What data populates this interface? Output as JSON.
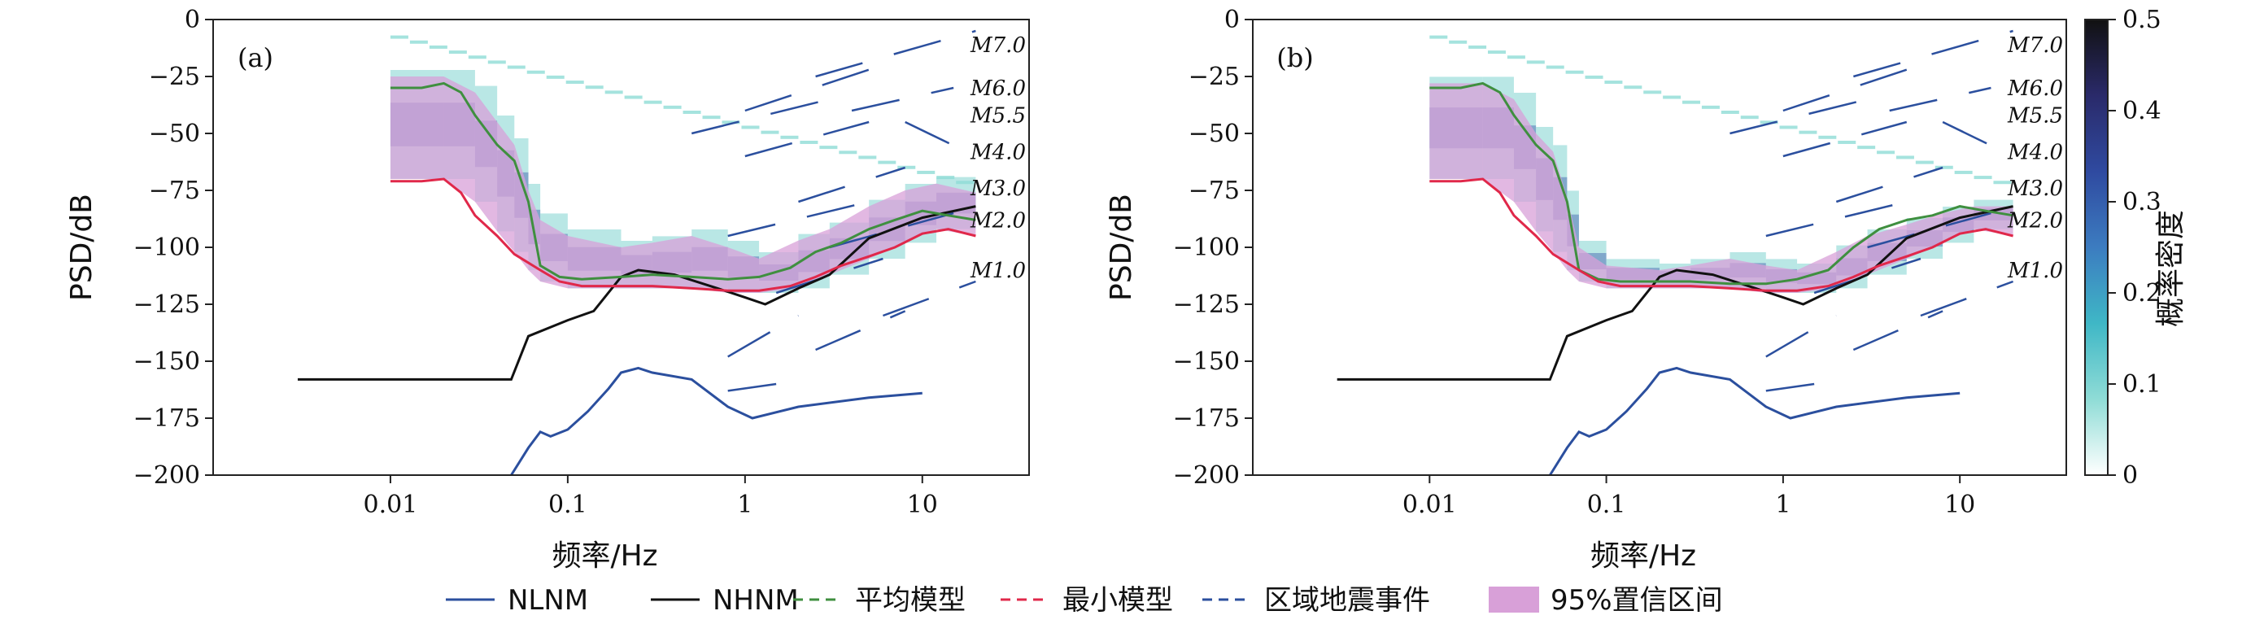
{
  "legend": {
    "items": [
      {
        "label": "NLNM",
        "color": "#2b4f9e",
        "style": "solid"
      },
      {
        "label": "NHNM",
        "color": "#111111",
        "style": "solid"
      },
      {
        "label": "平均模型",
        "color": "#3f8f3f",
        "style": "dashed"
      },
      {
        "label": "最小模型",
        "color": "#e0284a",
        "style": "dashed"
      },
      {
        "label": "区域地震事件",
        "color": "#2b4f9e",
        "style": "dashed"
      },
      {
        "label": "95%置信区间",
        "color": "#d8a0d8",
        "style": "patch"
      }
    ]
  },
  "colorbar": {
    "label": "概率密度",
    "ticks": [
      "0",
      "0.1",
      "0.2",
      "0.3",
      "0.4",
      "0.5"
    ],
    "range": [
      0,
      0.5
    ],
    "colors": [
      "#ffffff",
      "#8fdcd6",
      "#3fb7c6",
      "#3c7cc0",
      "#2f4aa0",
      "#2a2a6a",
      "#111111"
    ]
  },
  "chart_data": [
    {
      "type": "line",
      "panel_label": "(a)",
      "xlabel": "频率/Hz",
      "ylabel": "PSD/dB",
      "x_scale": "log",
      "xlim": [
        0.001,
        40
      ],
      "ylim": [
        -200,
        0
      ],
      "xticks": [
        "0.01",
        "0.1",
        "1",
        "10"
      ],
      "yticks": [
        "0",
        "−25",
        "−50",
        "−75",
        "−100",
        "−125",
        "−150",
        "−175",
        "−200"
      ],
      "magnitude_labels": [
        "M7.0",
        "M6.0",
        "M5.5",
        "M4.0",
        "M3.0",
        "M2.0",
        "M1.0"
      ],
      "series": [
        {
          "name": "NLNM",
          "x": [
            0.048,
            0.06,
            0.07,
            0.08,
            0.1,
            0.13,
            0.17,
            0.2,
            0.25,
            0.3,
            0.5,
            0.8,
            1.1,
            2,
            5,
            10
          ],
          "y": [
            -200,
            -188,
            -181,
            -183,
            -180,
            -172,
            -162,
            -155,
            -153,
            -155,
            -158,
            -170,
            -175,
            -170,
            -166,
            -164
          ]
        },
        {
          "name": "NHNM",
          "x": [
            0.003,
            0.048,
            0.06,
            0.1,
            0.14,
            0.2,
            0.25,
            0.4,
            0.7,
            1.0,
            1.3,
            2.0,
            3,
            5,
            10,
            20
          ],
          "y": [
            -158,
            -158,
            -139,
            -132,
            -128,
            -113,
            -110,
            -112,
            -118,
            -122,
            -125,
            -118,
            -112,
            -96,
            -87,
            -82
          ]
        },
        {
          "name": "平均模型",
          "x": [
            0.01,
            0.015,
            0.02,
            0.025,
            0.03,
            0.04,
            0.05,
            0.06,
            0.07,
            0.09,
            0.12,
            0.2,
            0.3,
            0.5,
            0.8,
            1.2,
            1.8,
            2.5,
            3.5,
            5,
            7,
            10,
            14,
            20
          ],
          "y": [
            -30,
            -30,
            -28,
            -32,
            -42,
            -55,
            -62,
            -80,
            -108,
            -113,
            -114,
            -113,
            -112,
            -113,
            -114,
            -113,
            -109,
            -102,
            -98,
            -92,
            -88,
            -84,
            -86,
            -88
          ]
        },
        {
          "name": "最小模型",
          "x": [
            0.01,
            0.015,
            0.02,
            0.025,
            0.03,
            0.04,
            0.05,
            0.07,
            0.09,
            0.12,
            0.2,
            0.3,
            0.5,
            0.8,
            1.2,
            1.8,
            2.5,
            3.5,
            5,
            7,
            10,
            14,
            20
          ],
          "y": [
            -71,
            -71,
            -70,
            -76,
            -86,
            -95,
            -103,
            -110,
            -115,
            -117,
            -117,
            -117,
            -118,
            -119,
            -119,
            -117,
            -113,
            -108,
            -104,
            -100,
            -94,
            -92,
            -95
          ]
        }
      ],
      "confidence_95": {
        "x": [
          0.01,
          0.02,
          0.03,
          0.04,
          0.05,
          0.06,
          0.07,
          0.1,
          0.2,
          0.3,
          0.5,
          0.8,
          1.2,
          2,
          3,
          5,
          8,
          12,
          20
        ],
        "upper": [
          -25,
          -25,
          -32,
          -45,
          -55,
          -75,
          -88,
          -95,
          -100,
          -98,
          -95,
          -100,
          -105,
          -97,
          -92,
          -82,
          -75,
          -72,
          -76
        ],
        "lower": [
          -70,
          -70,
          -80,
          -93,
          -102,
          -110,
          -115,
          -118,
          -118,
          -118,
          -118,
          -120,
          -120,
          -118,
          -112,
          -105,
          -98,
          -92,
          -95
        ]
      }
    },
    {
      "type": "line",
      "panel_label": "(b)",
      "xlabel": "频率/Hz",
      "ylabel": "PSD/dB",
      "x_scale": "log",
      "xlim": [
        0.001,
        40
      ],
      "ylim": [
        -200,
        0
      ],
      "xticks": [
        "0.01",
        "0.1",
        "1",
        "10"
      ],
      "yticks": [
        "0",
        "−25",
        "−50",
        "−75",
        "−100",
        "−125",
        "−150",
        "−175",
        "−200"
      ],
      "magnitude_labels": [
        "M7.0",
        "M6.0",
        "M5.5",
        "M4.0",
        "M3.0",
        "M2.0",
        "M1.0"
      ],
      "series": [
        {
          "name": "NLNM",
          "x": [
            0.048,
            0.06,
            0.07,
            0.08,
            0.1,
            0.13,
            0.17,
            0.2,
            0.25,
            0.3,
            0.5,
            0.8,
            1.1,
            2,
            5,
            10
          ],
          "y": [
            -200,
            -188,
            -181,
            -183,
            -180,
            -172,
            -162,
            -155,
            -153,
            -155,
            -158,
            -170,
            -175,
            -170,
            -166,
            -164
          ]
        },
        {
          "name": "NHNM",
          "x": [
            0.003,
            0.048,
            0.06,
            0.1,
            0.14,
            0.2,
            0.25,
            0.4,
            0.7,
            1.0,
            1.3,
            2.0,
            3,
            5,
            10,
            20
          ],
          "y": [
            -158,
            -158,
            -139,
            -132,
            -128,
            -113,
            -110,
            -112,
            -118,
            -122,
            -125,
            -118,
            -112,
            -96,
            -87,
            -82
          ]
        },
        {
          "name": "平均模型",
          "x": [
            0.01,
            0.015,
            0.02,
            0.025,
            0.03,
            0.04,
            0.05,
            0.06,
            0.07,
            0.09,
            0.12,
            0.2,
            0.3,
            0.5,
            0.8,
            1.2,
            1.8,
            2.5,
            3.5,
            5,
            7,
            10,
            14,
            20
          ],
          "y": [
            -30,
            -30,
            -28,
            -32,
            -42,
            -55,
            -62,
            -80,
            -110,
            -114,
            -115,
            -115,
            -115,
            -116,
            -116,
            -114,
            -110,
            -100,
            -92,
            -88,
            -86,
            -82,
            -84,
            -86
          ]
        },
        {
          "name": "最小模型",
          "x": [
            0.01,
            0.015,
            0.02,
            0.025,
            0.03,
            0.04,
            0.05,
            0.07,
            0.09,
            0.12,
            0.2,
            0.3,
            0.5,
            0.8,
            1.2,
            1.8,
            2.5,
            3.5,
            5,
            7,
            10,
            14,
            20
          ],
          "y": [
            -71,
            -71,
            -70,
            -76,
            -86,
            -95,
            -103,
            -110,
            -115,
            -117,
            -117,
            -117,
            -118,
            -119,
            -119,
            -117,
            -113,
            -108,
            -104,
            -100,
            -94,
            -92,
            -95
          ]
        }
      ],
      "confidence_95": {
        "x": [
          0.01,
          0.02,
          0.03,
          0.04,
          0.05,
          0.06,
          0.07,
          0.1,
          0.2,
          0.3,
          0.5,
          0.8,
          1.2,
          2,
          3,
          5,
          8,
          12,
          20
        ],
        "upper": [
          -28,
          -28,
          -35,
          -50,
          -58,
          -78,
          -100,
          -108,
          -110,
          -108,
          -105,
          -108,
          -110,
          -102,
          -95,
          -90,
          -85,
          -82,
          -82
        ],
        "lower": [
          -70,
          -70,
          -80,
          -93,
          -102,
          -110,
          -115,
          -118,
          -118,
          -118,
          -118,
          -120,
          -120,
          -118,
          -112,
          -105,
          -98,
          -92,
          -95
        ]
      }
    }
  ]
}
